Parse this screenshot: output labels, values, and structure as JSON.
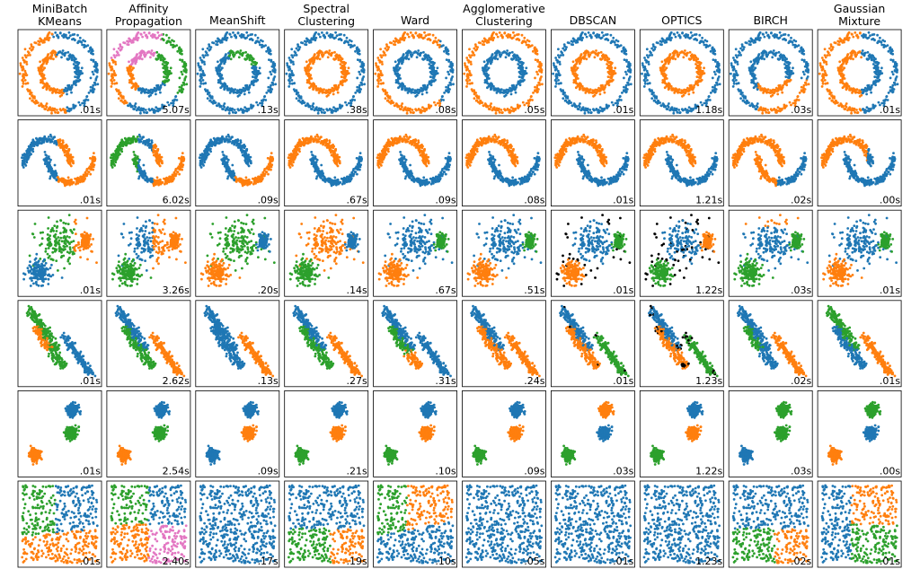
{
  "chart_data": {
    "type": "scatter",
    "palette": [
      "#1f77b4",
      "#ff7f0e",
      "#2ca02c",
      "#e377c2",
      "#000000"
    ],
    "datasets": [
      "noisy circles",
      "noisy moons",
      "varied blobs",
      "anisotropic blobs",
      "blobs",
      "no structure"
    ],
    "columns": [
      {
        "title": [
          "MiniBatch",
          "KMeans"
        ]
      },
      {
        "title": [
          "Affinity",
          "Propagation"
        ]
      },
      {
        "title": [
          "MeanShift"
        ]
      },
      {
        "title": [
          "Spectral",
          "Clustering"
        ]
      },
      {
        "title": [
          "Ward"
        ]
      },
      {
        "title": [
          "Agglomerative",
          "Clustering"
        ]
      },
      {
        "title": [
          "DBSCAN"
        ]
      },
      {
        "title": [
          "OPTICS"
        ]
      },
      {
        "title": [
          "BIRCH"
        ]
      },
      {
        "title": [
          "Gaussian",
          "Mixture"
        ]
      }
    ],
    "times": [
      [
        ".01s",
        "5.07s",
        ".13s",
        ".38s",
        ".08s",
        ".05s",
        ".01s",
        "1.18s",
        ".03s",
        ".01s"
      ],
      [
        ".01s",
        "6.02s",
        ".09s",
        ".67s",
        ".09s",
        ".08s",
        ".01s",
        "1.21s",
        ".02s",
        ".00s"
      ],
      [
        ".01s",
        "3.26s",
        ".20s",
        ".14s",
        ".67s",
        ".51s",
        ".01s",
        "1.22s",
        ".03s",
        ".01s"
      ],
      [
        ".01s",
        "2.62s",
        ".13s",
        ".27s",
        ".31s",
        ".24s",
        ".01s",
        "1.23s",
        ".02s",
        ".01s"
      ],
      [
        ".01s",
        "2.54s",
        ".09s",
        ".21s",
        ".10s",
        ".09s",
        ".03s",
        "1.22s",
        ".03s",
        ".00s"
      ],
      [
        ".01s",
        "2.40s",
        ".17s",
        ".19s",
        ".10s",
        ".05s",
        ".01s",
        "1.23s",
        ".02s",
        ".01s"
      ]
    ]
  }
}
